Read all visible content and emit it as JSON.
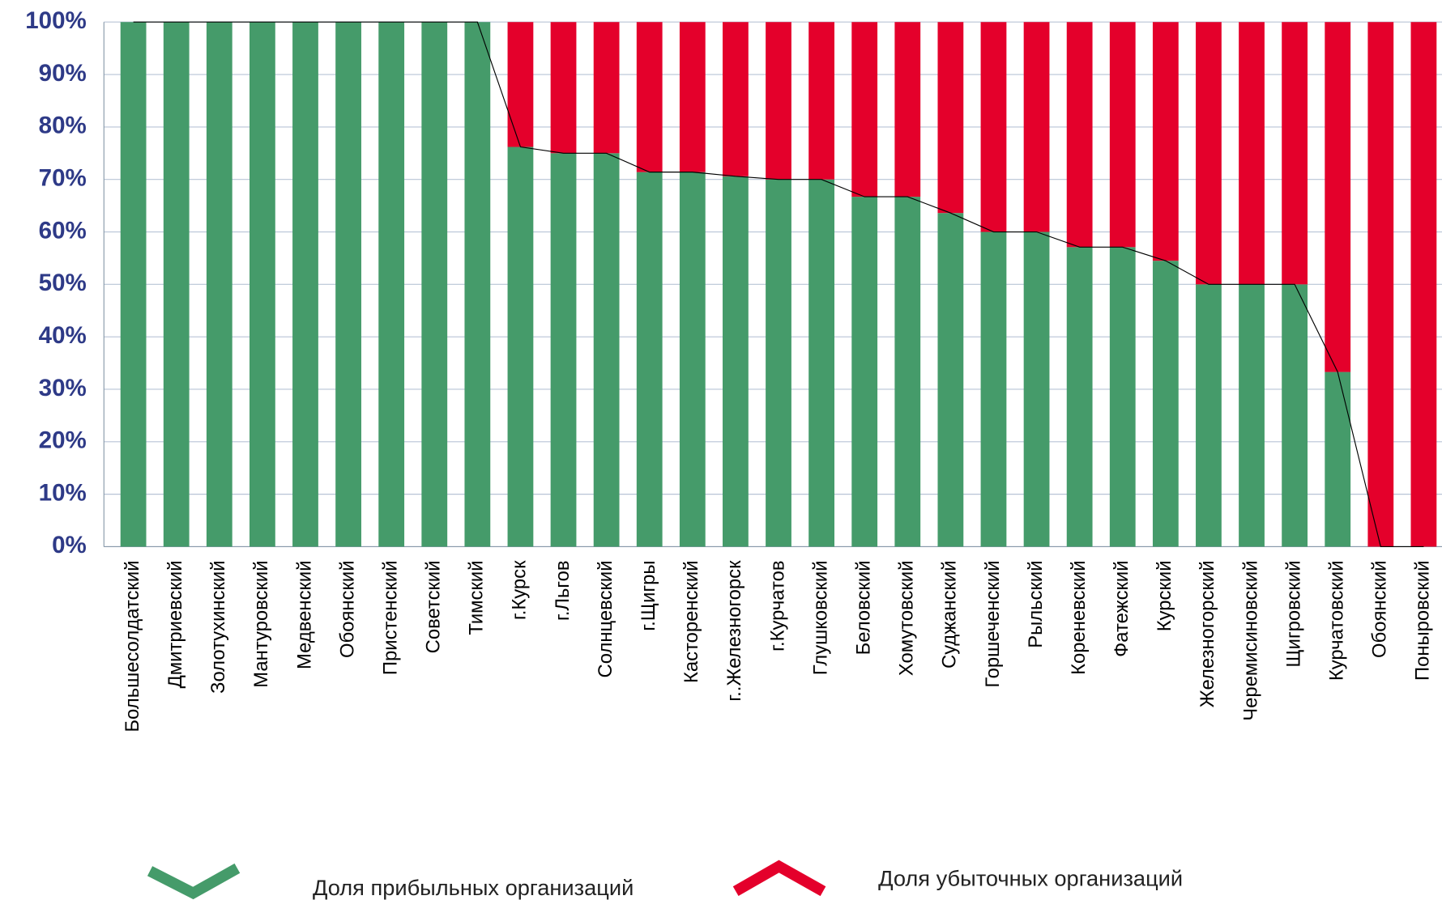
{
  "chart_data": {
    "type": "stacked_bar",
    "categories": [
      "Большесолдатский",
      "Дмитриевский",
      "Золотухинский",
      "Мантуровский",
      "Медвенский",
      "Обоянский",
      "Пристенский",
      "Советский",
      "Тимский",
      "г.Курск",
      "г.Льгов",
      "Солнцевский",
      "г.Щигры",
      "Касторенский",
      "г..Железногорск",
      "г.Курчатов",
      "Глушковский",
      "Беловский",
      "Хомутовский",
      "Суджанский",
      "Горшеченский",
      "Рыльский",
      "Кореневский",
      "Фатежский",
      "Курский",
      "Железногорский",
      "Черемисиновский",
      "Щигровский",
      "Курчатовский",
      "Обоянский",
      "Поныровский"
    ],
    "series": [
      {
        "name": "Доля прибыльных организаций",
        "color": "#459b6a",
        "values": [
          100,
          100,
          100,
          100,
          100,
          100,
          100,
          100,
          100,
          76.2,
          75,
          75,
          71.4,
          71.4,
          70.6,
          70,
          70,
          66.7,
          66.7,
          63.6,
          60,
          60,
          57.1,
          57.1,
          54.5,
          50,
          50,
          50,
          33.3,
          0,
          0
        ]
      },
      {
        "name": "Доля убыточных организаций",
        "color": "#e4002b",
        "values": [
          0,
          0,
          0,
          0,
          0,
          0,
          0,
          0,
          0,
          23.8,
          25,
          25,
          28.6,
          28.6,
          29.4,
          30,
          30,
          33.3,
          33.3,
          36.4,
          40,
          40,
          42.9,
          42.9,
          45.5,
          50,
          50,
          50,
          66.7,
          100,
          100
        ]
      }
    ],
    "ylim": [
      0,
      100
    ],
    "yticks": [
      {
        "value": 0,
        "label": "0%"
      },
      {
        "value": 10,
        "label": "10%"
      },
      {
        "value": 20,
        "label": "20%"
      },
      {
        "value": 30,
        "label": "30%"
      },
      {
        "value": 40,
        "label": "40%"
      },
      {
        "value": 50,
        "label": "50%"
      },
      {
        "value": 60,
        "label": "60%"
      },
      {
        "value": 70,
        "label": "70%"
      },
      {
        "value": 80,
        "label": "80%"
      },
      {
        "value": 90,
        "label": "90%"
      },
      {
        "value": 100,
        "label": "100%"
      }
    ],
    "grid": true
  }
}
